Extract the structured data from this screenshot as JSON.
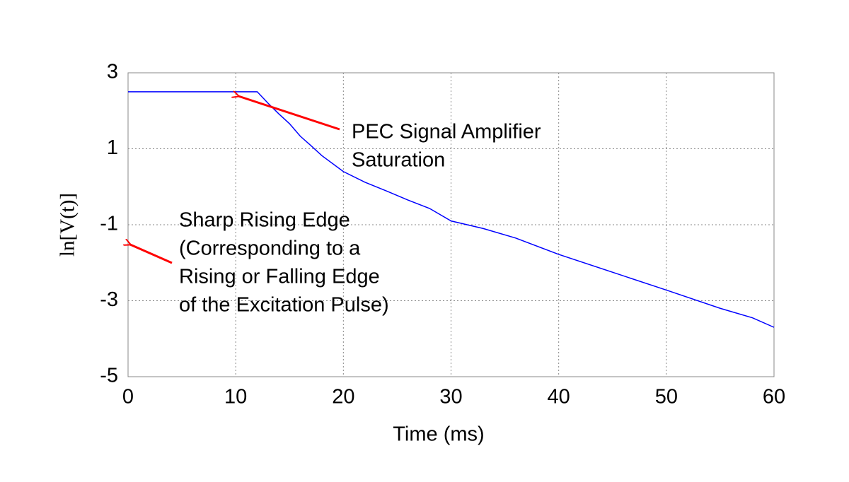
{
  "chart_data": {
    "type": "line",
    "x_label": "Time (ms)",
    "y_label": "ln[V(t)]",
    "x": [
      0,
      12,
      13,
      14,
      15,
      16,
      17,
      18,
      20,
      22,
      24,
      26,
      28,
      30,
      33,
      36,
      40,
      45,
      50,
      55,
      58,
      60
    ],
    "series": [
      {
        "color": "#0000ff",
        "values": [
          2.5,
          2.5,
          2.2,
          1.92,
          1.66,
          1.33,
          1.08,
          0.82,
          0.4,
          0.12,
          -0.11,
          -0.35,
          -0.57,
          -0.9,
          -1.1,
          -1.35,
          -1.78,
          -2.25,
          -2.72,
          -3.2,
          -3.45,
          -3.7
        ]
      }
    ],
    "xlim": [
      0,
      60
    ],
    "xticks": [
      0,
      10,
      20,
      30,
      40,
      50,
      60
    ],
    "ylim": [
      -5,
      3
    ],
    "yticks": [
      -5,
      -3,
      -1,
      1,
      3
    ],
    "grid": true,
    "annotations": [
      {
        "lines": [
          "PEC Signal Amplifier",
          "Saturation"
        ]
      },
      {
        "lines": [
          "Sharp Rising Edge",
          "(Corresponding to a",
          "Rising or Falling Edge",
          "of the Excitation Pulse)"
        ]
      }
    ]
  }
}
